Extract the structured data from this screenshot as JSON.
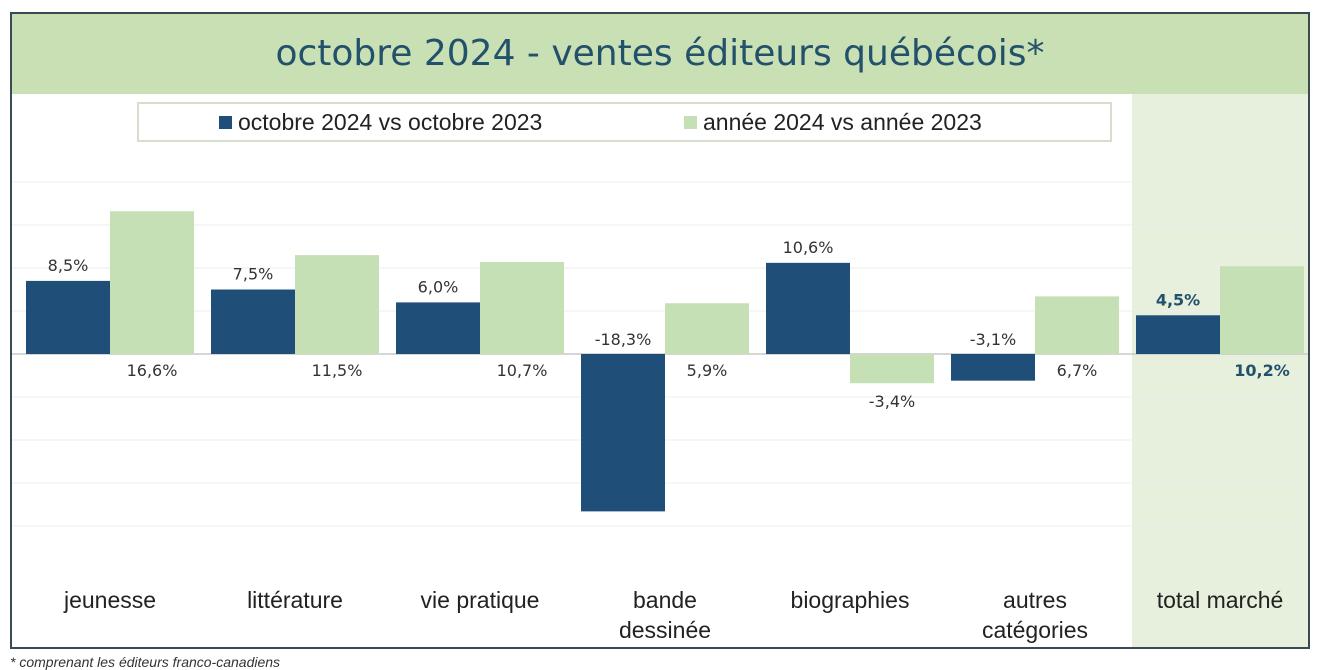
{
  "chart_data": {
    "type": "bar",
    "title": "octobre 2024 - ventes éditeurs québécois*",
    "categories": [
      [
        "jeunesse"
      ],
      [
        "littérature"
      ],
      [
        "vie pratique"
      ],
      [
        "bande",
        "dessinée"
      ],
      [
        "biographies"
      ],
      [
        "autres",
        "catégories"
      ],
      [
        "total marché"
      ]
    ],
    "series": [
      {
        "name": "octobre 2024 vs octobre 2023",
        "color": "#1f4e79",
        "values": [
          8.5,
          7.5,
          6.0,
          -18.3,
          10.6,
          -3.1,
          4.5
        ],
        "labels": [
          "8,5%",
          "7,5%",
          "6,0%",
          "-18,3%",
          "10,6%",
          "-3,1%",
          "4,5%"
        ]
      },
      {
        "name": "année 2024 vs année 2023",
        "color": "#c5e0b4",
        "values": [
          16.6,
          11.5,
          10.7,
          5.9,
          -3.4,
          6.7,
          10.2
        ],
        "labels": [
          "16,6%",
          "11,5%",
          "10,7%",
          "5,9%",
          "-3,4%",
          "6,7%",
          "10,2%"
        ]
      }
    ],
    "highlight_category": "total marché",
    "legend_position": "top",
    "grid": "horizontal"
  },
  "footnote": "* comprenant les éditeurs franco-canadiens"
}
